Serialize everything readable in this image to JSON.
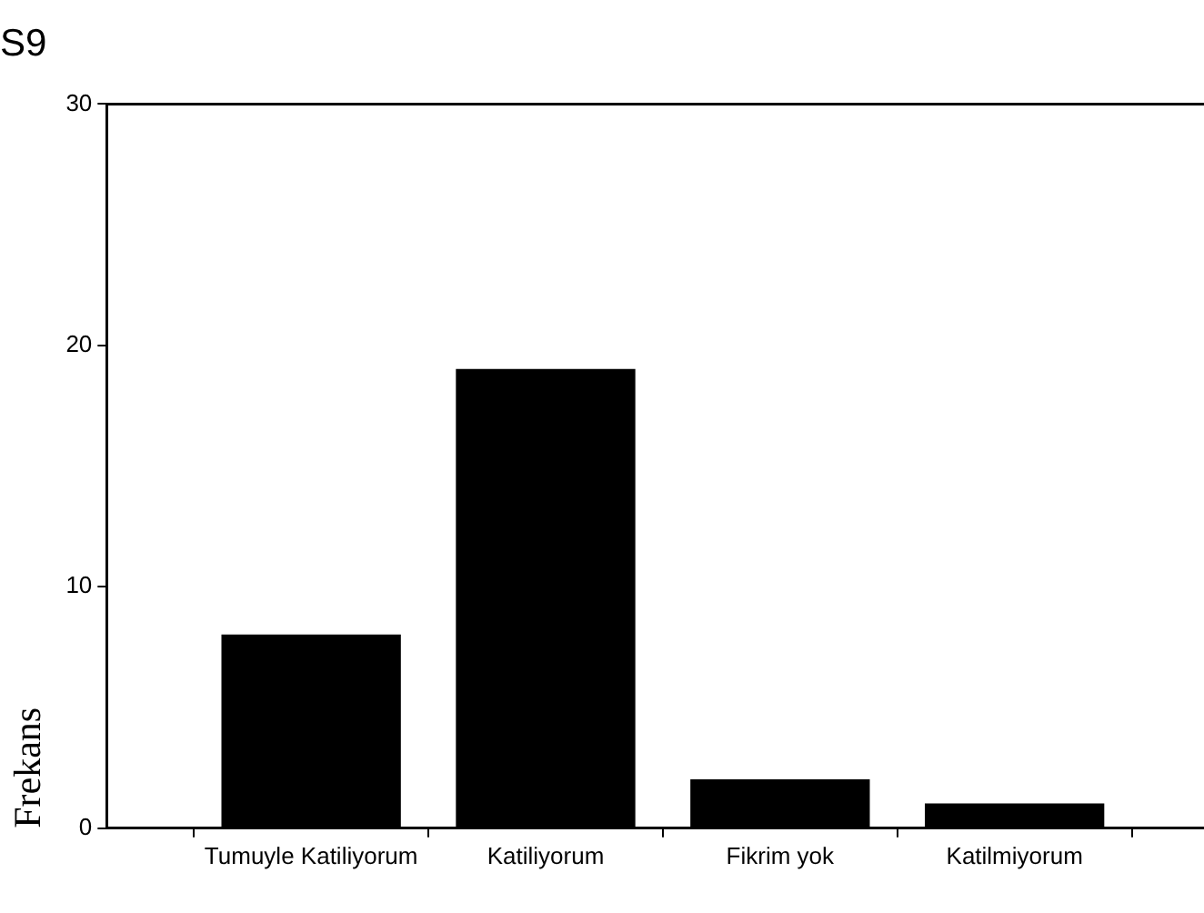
{
  "chart_data": {
    "type": "bar",
    "title": "S9",
    "ylabel": "Frekans",
    "categories": [
      "Tumuyle Katiliyorum",
      "Katiliyorum",
      "Fikrim yok",
      "Katilmiyorum"
    ],
    "values": [
      8,
      19,
      2,
      1
    ],
    "color": "#000000",
    "ylim": [
      0,
      30
    ],
    "yticks": [
      0,
      10,
      20,
      30
    ],
    "grid": false,
    "legend": false
  }
}
